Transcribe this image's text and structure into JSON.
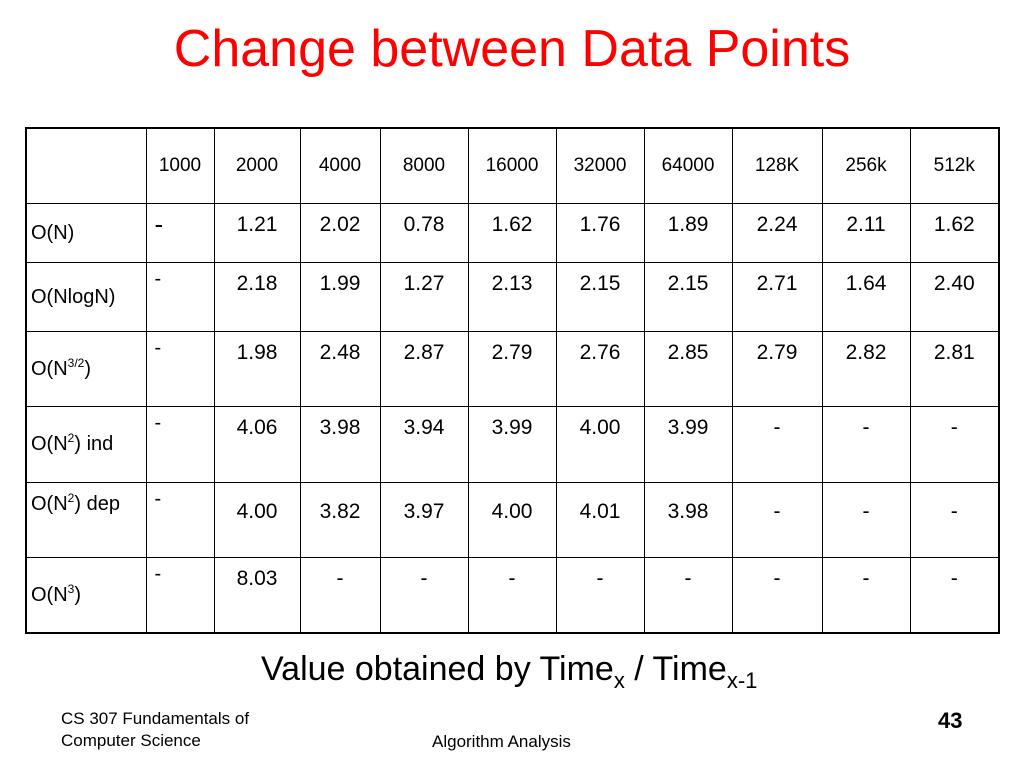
{
  "title": "Change between Data Points",
  "table": {
    "columns": [
      "1000",
      "2000",
      "4000",
      "8000",
      "16000",
      "32000",
      "64000",
      "128K",
      "256k",
      "512k"
    ],
    "rows": [
      {
        "label": "O(N)",
        "label_base": "O(N)",
        "label_sup": "",
        "label_suffix": "",
        "values": [
          "-",
          "1.21",
          "2.02",
          "0.78",
          "1.62",
          "1.76",
          "1.89",
          "2.24",
          "2.11",
          "1.62"
        ]
      },
      {
        "label": "O(NlogN)",
        "label_base": "O(NlogN",
        "label_sup": "",
        "label_suffix": ")",
        "values": [
          "-",
          "2.18",
          "1.99",
          "1.27",
          "2.13",
          "2.15",
          "2.15",
          "2.71",
          "1.64",
          "2.40"
        ]
      },
      {
        "label": "O(N3/2)",
        "label_base": "O(N",
        "label_sup": "3/2",
        "label_suffix": ")",
        "values": [
          "-",
          "1.98",
          "2.48",
          "2.87",
          "2.79",
          "2.76",
          "2.85",
          "2.79",
          "2.82",
          "2.81"
        ]
      },
      {
        "label": "O(N2) ind",
        "label_base": "O(N",
        "label_sup": "2",
        "label_suffix": ") ind",
        "values": [
          "-",
          "4.06",
          "3.98",
          "3.94",
          "3.99",
          "4.00",
          "3.99",
          "-",
          "-",
          "-"
        ]
      },
      {
        "label": "O(N2) dep",
        "label_base": "O(N",
        "label_sup": "2",
        "label_suffix": ") dep",
        "values": [
          "-",
          "4.00",
          "3.82",
          "3.97",
          "4.00",
          "4.01",
          "3.98",
          "-",
          "-",
          "-"
        ]
      },
      {
        "label": "O(N3)",
        "label_base": "O(N",
        "label_sup": "3",
        "label_suffix": ")",
        "values": [
          "-",
          "8.03",
          "-",
          "-",
          "-",
          "-",
          "-",
          "-",
          "-",
          "-"
        ]
      }
    ]
  },
  "caption": {
    "text": "Value obtained by Time",
    "sub1": "x",
    "middle": " / Time",
    "sub2": "x-1"
  },
  "footer": {
    "course_line1": "CS 307 Fundamentals of",
    "course_line2": "Computer Science",
    "topic": "Algorithm Analysis",
    "page_number": "43"
  },
  "colors": {
    "title": "#ff0000"
  }
}
